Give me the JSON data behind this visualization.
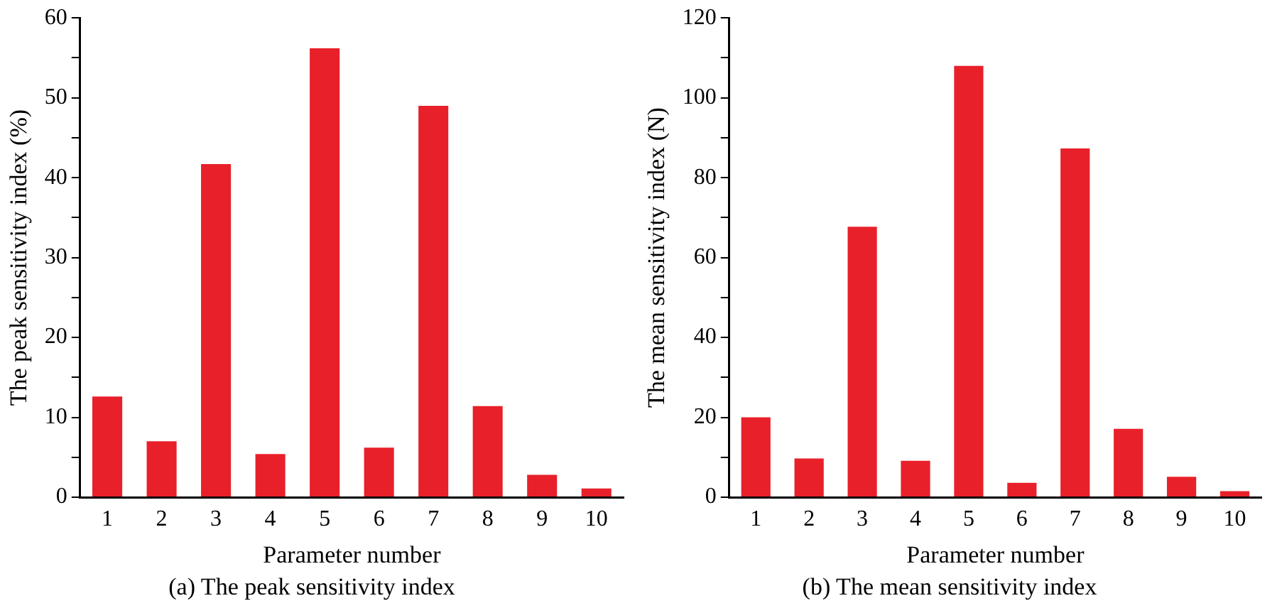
{
  "chart_data": [
    {
      "type": "bar",
      "title": "(a) The peak sensitivity index",
      "xlabel": "Parameter number",
      "ylabel": "The peak sensitivity index (%)",
      "categories": [
        "1",
        "2",
        "3",
        "4",
        "5",
        "6",
        "7",
        "8",
        "9",
        "10"
      ],
      "values": [
        12.6,
        7.0,
        41.7,
        5.4,
        56.2,
        6.2,
        49.0,
        11.4,
        2.8,
        1.1
      ],
      "color": "#e8202a",
      "ylim": [
        0,
        60
      ],
      "yticks": [
        0,
        {
          "value": 5,
          "label": null
        },
        10,
        {
          "value": 15,
          "label": null
        },
        20,
        {
          "value": 25,
          "label": null
        },
        30,
        {
          "value": 35,
          "label": null
        },
        40,
        {
          "value": 45,
          "label": null
        },
        50,
        {
          "value": 55,
          "label": null
        },
        60
      ],
      "grid": false,
      "legend": false
    },
    {
      "type": "bar",
      "title": "(b) The mean sensitivity index",
      "xlabel": "Parameter number",
      "ylabel": "The mean sensitivity index (N)",
      "categories": [
        "1",
        "2",
        "3",
        "4",
        "5",
        "6",
        "7",
        "8",
        "9",
        "10"
      ],
      "values": [
        20.0,
        9.7,
        67.7,
        9.1,
        108.0,
        3.6,
        87.3,
        17.1,
        5.1,
        1.5
      ],
      "color": "#e8202a",
      "ylim": [
        0,
        120
      ],
      "yticks": [
        0,
        {
          "value": 10,
          "label": null
        },
        20,
        {
          "value": 30,
          "label": null
        },
        40,
        {
          "value": 50,
          "label": null
        },
        60,
        {
          "value": 70,
          "label": null
        },
        80,
        {
          "value": 90,
          "label": null
        },
        100,
        {
          "value": 110,
          "label": null
        },
        120
      ],
      "grid": false,
      "legend": false
    }
  ]
}
